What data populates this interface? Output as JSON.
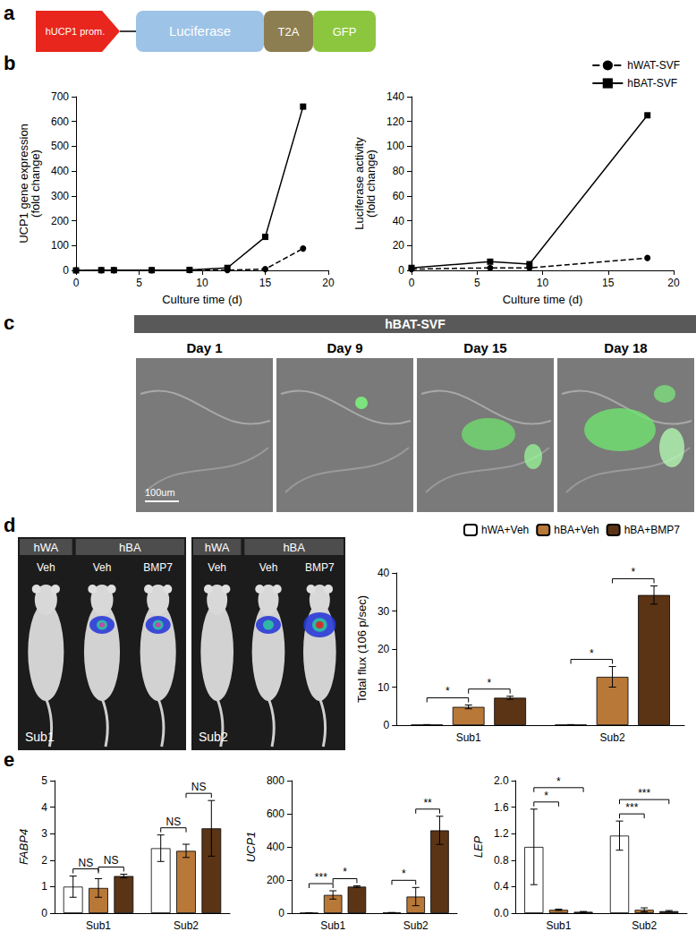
{
  "panel_letters": [
    "a",
    "b",
    "c",
    "d",
    "e"
  ],
  "construct": {
    "parts": [
      {
        "text": "hUCP1 prom.",
        "color": "#e8261d"
      },
      {
        "text": "Luciferase",
        "color": "#9dc3e6"
      },
      {
        "text": "T2A",
        "color": "#8c7e50"
      },
      {
        "text": "GFP",
        "color": "#8cc63f"
      }
    ]
  },
  "micrographs": {
    "title": "hBAT-SVF",
    "days": [
      "Day 1",
      "Day 9",
      "Day 15",
      "Day 18"
    ],
    "scale_bar": "100um"
  },
  "mice": {
    "headers": [
      "hWA",
      "hBA"
    ],
    "treatments": [
      "Veh",
      "Veh",
      "BMP7"
    ],
    "subjects": [
      "Sub1",
      "Sub2"
    ]
  },
  "chart_data": [
    {
      "type": "line",
      "x_label": "Culture time (d)",
      "y_label": "UCP1 gene expression\n(fold change)",
      "x": [
        0,
        2,
        3,
        6,
        9,
        12,
        15,
        18
      ],
      "series": [
        {
          "name": "hWAT-SVF",
          "color": "#000000",
          "marker": "circle",
          "line_style": "dashed",
          "values": [
            0,
            0.5,
            0.5,
            0.5,
            1,
            1,
            5,
            88
          ]
        },
        {
          "name": "hBAT-SVF",
          "color": "#000000",
          "marker": "square",
          "line_style": "solid",
          "values": [
            0,
            1,
            1,
            1,
            2,
            10,
            135,
            660
          ]
        }
      ],
      "xlim": [
        0,
        20
      ],
      "xticks": [
        0,
        5,
        10,
        15,
        20
      ],
      "ylim": [
        0,
        700
      ],
      "yticks": [
        0,
        100,
        200,
        300,
        400,
        500,
        600,
        700
      ],
      "grid": false
    },
    {
      "type": "line",
      "x_label": "Culture time (d)",
      "y_label": "Luciferase activity\n(fold change)",
      "x": [
        0,
        6,
        9,
        18
      ],
      "series": [
        {
          "name": "hWAT-SVF",
          "color": "#000000",
          "marker": "circle",
          "line_style": "dashed",
          "values": [
            1,
            2,
            2,
            10
          ]
        },
        {
          "name": "hBAT-SVF",
          "color": "#000000",
          "marker": "square",
          "line_style": "solid",
          "values": [
            2,
            7,
            5,
            125
          ]
        }
      ],
      "xlim": [
        0,
        20
      ],
      "xticks": [
        0,
        5,
        10,
        15,
        20
      ],
      "ylim": [
        0,
        140
      ],
      "yticks": [
        0,
        20,
        40,
        60,
        80,
        100,
        120,
        140
      ],
      "grid": false,
      "legend": "upper right"
    },
    {
      "type": "bar",
      "y_label": "Total flux (106 p/sec)",
      "categories": [
        "Sub1",
        "Sub2"
      ],
      "series": [
        {
          "name": "hWA+Veh",
          "color": "#ffffff",
          "values": [
            0.1,
            0.1
          ],
          "errors": [
            0.05,
            0.05
          ]
        },
        {
          "name": "hBA+Veh",
          "color": "#b87838",
          "values": [
            4.8,
            12.7
          ],
          "errors": [
            0.5,
            2.7
          ]
        },
        {
          "name": "hBA+BMP7",
          "color": "#5b3416",
          "values": [
            7.2,
            34.2
          ],
          "errors": [
            0.4,
            2.4
          ]
        }
      ],
      "ylim": [
        0,
        40
      ],
      "yticks": [
        0,
        10,
        20,
        30,
        40
      ],
      "grid": false,
      "legend": "upper right",
      "annotations": [
        {
          "category": "Sub1",
          "between": [
            "hWA+Veh",
            "hBA+Veh"
          ],
          "text": "*"
        },
        {
          "category": "Sub1",
          "between": [
            "hBA+Veh",
            "hBA+BMP7"
          ],
          "text": "*"
        },
        {
          "category": "Sub2",
          "between": [
            "hWA+Veh",
            "hBA+Veh"
          ],
          "text": "*"
        },
        {
          "category": "Sub2",
          "between": [
            "hBA+Veh",
            "hBA+BMP7"
          ],
          "text": "*"
        }
      ]
    },
    {
      "type": "bar",
      "y_label": "FABP4",
      "categories": [
        "Sub1",
        "Sub2"
      ],
      "series": [
        {
          "name": "hWA+Veh",
          "color": "#ffffff",
          "values": [
            1.0,
            2.45
          ],
          "errors": [
            0.4,
            0.5
          ]
        },
        {
          "name": "hBA+Veh",
          "color": "#b87838",
          "values": [
            0.95,
            2.35
          ],
          "errors": [
            0.35,
            0.25
          ]
        },
        {
          "name": "hBA+BMP7",
          "color": "#5b3416",
          "values": [
            1.4,
            3.2
          ],
          "errors": [
            0.07,
            1.05
          ]
        }
      ],
      "ylim": [
        0,
        5
      ],
      "yticks": [
        0,
        1,
        2,
        3,
        4,
        5
      ],
      "grid": false,
      "annotations": [
        {
          "category": "Sub1",
          "between": [
            "hWA+Veh",
            "hBA+Veh"
          ],
          "text": "NS"
        },
        {
          "category": "Sub1",
          "between": [
            "hBA+Veh",
            "hBA+BMP7"
          ],
          "text": "NS"
        },
        {
          "category": "Sub2",
          "between": [
            "hWA+Veh",
            "hBA+Veh"
          ],
          "text": "NS"
        },
        {
          "category": "Sub2",
          "between": [
            "hBA+Veh",
            "hBA+BMP7"
          ],
          "text": "NS"
        }
      ]
    },
    {
      "type": "bar",
      "y_label": "UCP1",
      "categories": [
        "Sub1",
        "Sub2"
      ],
      "series": [
        {
          "name": "hWA+Veh",
          "color": "#ffffff",
          "values": [
            1,
            3
          ],
          "errors": [
            0.5,
            1
          ]
        },
        {
          "name": "hBA+Veh",
          "color": "#b87838",
          "values": [
            110,
            100
          ],
          "errors": [
            25,
            55
          ]
        },
        {
          "name": "hBA+BMP7",
          "color": "#5b3416",
          "values": [
            160,
            500
          ],
          "errors": [
            5,
            85
          ]
        }
      ],
      "ylim": [
        0,
        800
      ],
      "yticks": [
        0,
        200,
        400,
        600,
        800
      ],
      "grid": false,
      "annotations": [
        {
          "category": "Sub1",
          "between": [
            "hWA+Veh",
            "hBA+Veh"
          ],
          "text": "***"
        },
        {
          "category": "Sub1",
          "between": [
            "hBA+Veh",
            "hBA+BMP7"
          ],
          "text": "*"
        },
        {
          "category": "Sub2",
          "between": [
            "hWA+Veh",
            "hBA+Veh"
          ],
          "text": "*"
        },
        {
          "category": "Sub2",
          "between": [
            "hBA+Veh",
            "hBA+BMP7"
          ],
          "text": "**"
        }
      ]
    },
    {
      "type": "bar",
      "y_label": "LEP",
      "categories": [
        "Sub1",
        "Sub2"
      ],
      "series": [
        {
          "name": "hWA+Veh",
          "color": "#ffffff",
          "values": [
            1.0,
            1.17
          ],
          "errors": [
            0.57,
            0.22
          ]
        },
        {
          "name": "hBA+Veh",
          "color": "#b87838",
          "values": [
            0.05,
            0.05
          ],
          "errors": [
            0.01,
            0.03
          ]
        },
        {
          "name": "hBA+BMP7",
          "color": "#5b3416",
          "values": [
            0.02,
            0.03
          ],
          "errors": [
            0.005,
            0.01
          ]
        }
      ],
      "ylim": [
        0,
        2
      ],
      "yticks": [
        {
          "value": 0,
          "label": "0.0"
        },
        0.4,
        0.8,
        1.2,
        1.6,
        {
          "value": 2,
          "label": "2.0"
        }
      ],
      "grid": false,
      "annotations": [
        {
          "category": "Sub1",
          "between": [
            "hWA+Veh",
            "hBA+Veh"
          ],
          "text": "*"
        },
        {
          "category": "Sub1",
          "between": [
            "hWA+Veh",
            "hBA+BMP7"
          ],
          "text": "*"
        },
        {
          "category": "Sub2",
          "between": [
            "hWA+Veh",
            "hBA+Veh"
          ],
          "text": "***"
        },
        {
          "category": "Sub2",
          "between": [
            "hWA+Veh",
            "hBA+BMP7"
          ],
          "text": "***"
        }
      ]
    }
  ]
}
